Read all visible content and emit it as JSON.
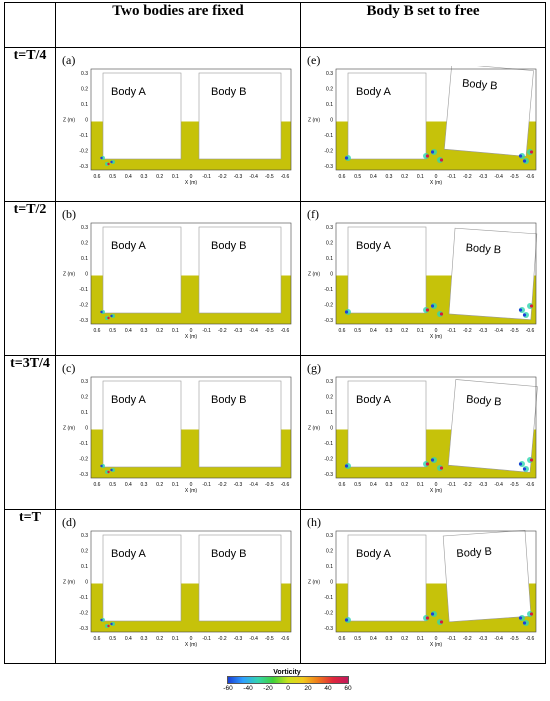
{
  "headers": [
    "Two bodies are fixed",
    "Body B set to free"
  ],
  "rows": [
    {
      "label": "t=T/4",
      "panels": [
        {
          "tag": "(a)",
          "free": false
        },
        {
          "tag": "(e)",
          "free": true
        }
      ]
    },
    {
      "label": "t=T/2",
      "panels": [
        {
          "tag": "(b)",
          "free": false
        },
        {
          "tag": "(f)",
          "free": true
        }
      ]
    },
    {
      "label": "t=3T/4",
      "panels": [
        {
          "tag": "(c)",
          "free": false
        },
        {
          "tag": "(g)",
          "free": true
        }
      ]
    },
    {
      "label": "t=T",
      "panels": [
        {
          "tag": "(d)",
          "free": false
        },
        {
          "tag": "(h)",
          "free": true
        }
      ]
    }
  ],
  "body_labels": {
    "a": "Body A",
    "b": "Body B"
  },
  "axes": {
    "z_label": "Z (m)",
    "x_label": "X (m)",
    "z_ticks": [
      "0.3",
      "0.2",
      "0.1",
      "0",
      "-0.1",
      "-0.2",
      "-0.3"
    ],
    "x_ticks": [
      "0.6",
      "0.5",
      "0.4",
      "0.3",
      "0.2",
      "0.1",
      "0",
      "-0.1",
      "-0.2",
      "-0.3",
      "-0.4",
      "-0.5",
      "-0.6"
    ]
  },
  "colorbar": {
    "title": "Vorticity",
    "ticks": [
      "-60",
      "-40",
      "-20",
      "0",
      "20",
      "40",
      "60"
    ]
  },
  "colors": {
    "water": "#c6c20a",
    "vortex_pos": "#d81b3c",
    "vortex_neg": "#1e40d8",
    "vortex_mid": "#2fd6b0"
  }
}
